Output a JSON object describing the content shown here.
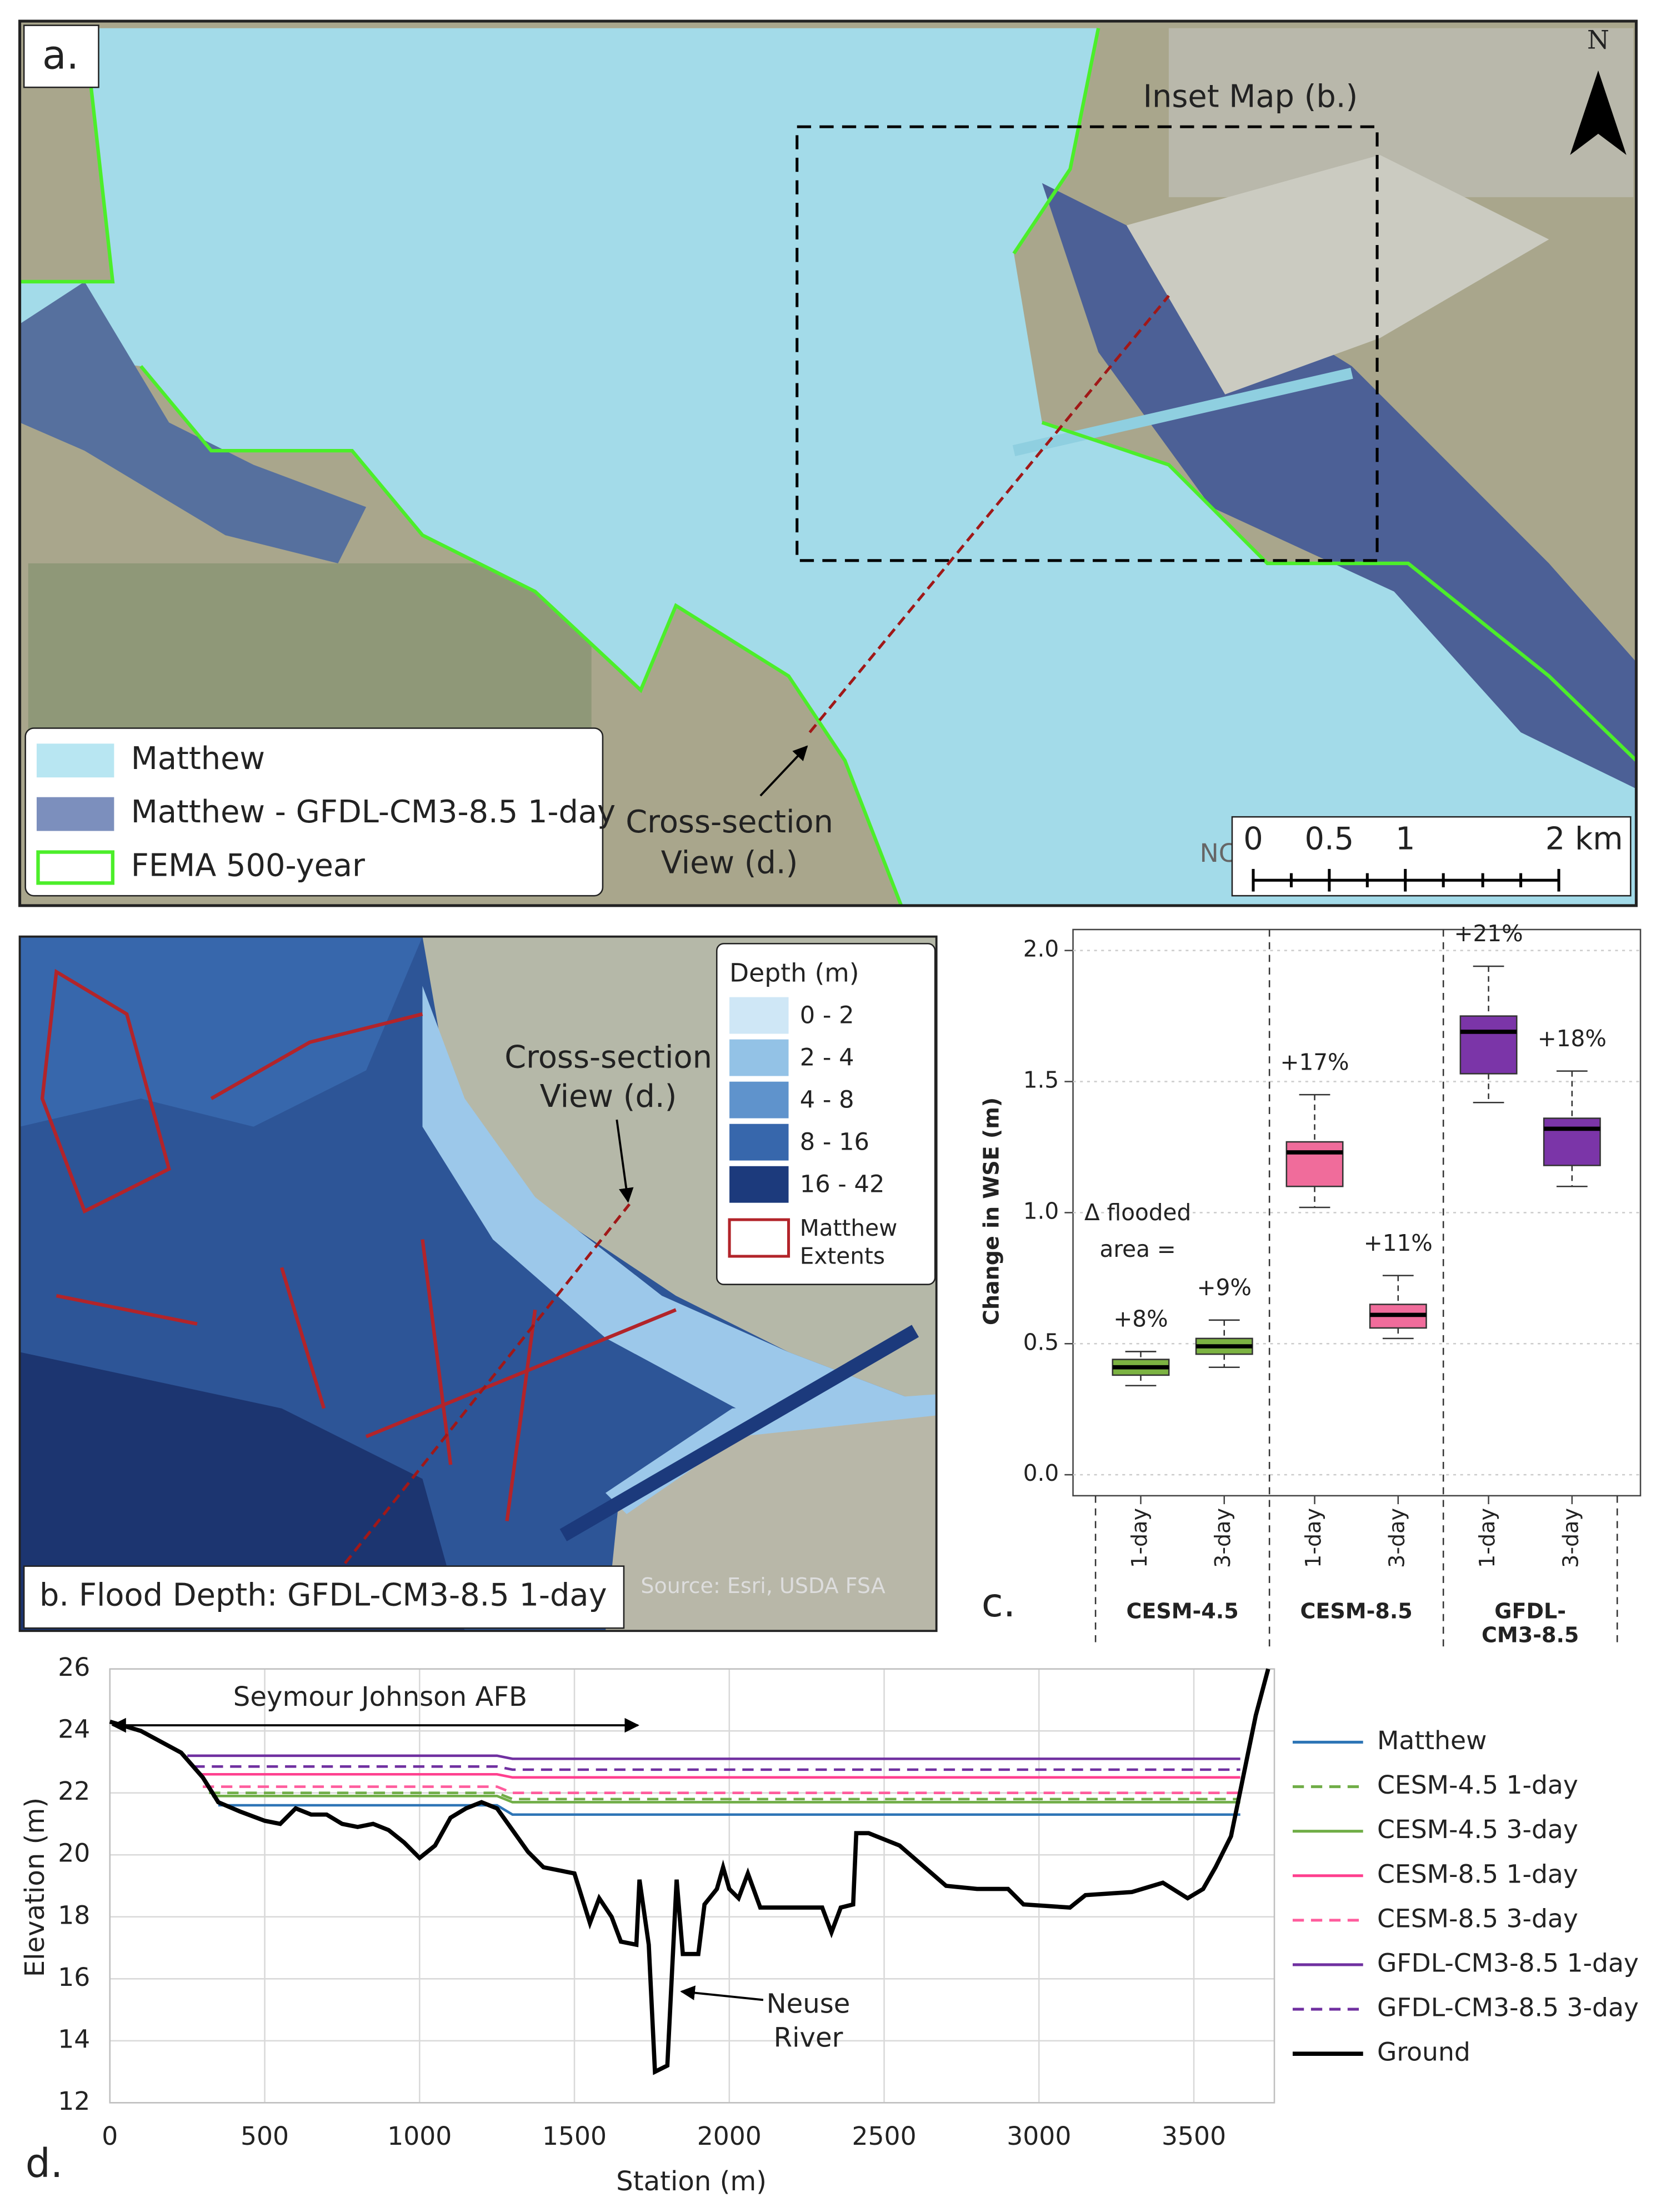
{
  "map_a": {
    "panel_label": "a.",
    "inset_label": "Inset Map (b.)",
    "north": "N",
    "cross_section": [
      "Cross-section",
      "View (d.)"
    ],
    "state": "NC",
    "legend": [
      "Matthew",
      "Matthew - GFDL-CM3-8.5 1-day",
      "FEMA 500-year"
    ],
    "scale": [
      "0",
      "0.5",
      "1",
      "2 km"
    ]
  },
  "map_b": {
    "title": "b. Flood Depth: GFDL-CM3-8.5 1-day",
    "legend_title": "Depth (m)",
    "depth_classes": [
      "0 - 2",
      "2 - 4",
      "4 - 8",
      "8 - 16",
      "16 - 42"
    ],
    "extent_label": [
      "Matthew",
      "Extents"
    ],
    "cross_section": [
      "Cross-section",
      "View (d.)"
    ],
    "source": "Source: Esri, USDA FSA"
  },
  "chart_data": [
    {
      "type": "box",
      "panel_label": "c.",
      "y_label": "Change in WSE (m)",
      "ylim": [
        -0.08,
        2.08
      ],
      "yticks": [
        {
          "value": 0,
          "label": "0.0"
        },
        {
          "value": 0.5,
          "label": "0.5"
        },
        {
          "value": 1,
          "label": "1.0"
        },
        {
          "value": 1.5,
          "label": "1.5"
        },
        {
          "value": 2,
          "label": "2.0"
        }
      ],
      "grid": true,
      "annotations": [
        "Δ flooded",
        "area ="
      ],
      "groups": [
        {
          "name": "CESM-4.5",
          "color": "#7cb342",
          "boxes": [
            {
              "category": "1-day",
              "min": 0.34,
              "q1": 0.38,
              "median": 0.41,
              "q3": 0.44,
              "max": 0.47,
              "label": "+8%"
            },
            {
              "category": "3-day",
              "min": 0.41,
              "q1": 0.46,
              "median": 0.49,
              "q3": 0.52,
              "max": 0.59,
              "label": "+9%"
            }
          ]
        },
        {
          "name": "CESM-8.5",
          "color": "#f06c9b",
          "boxes": [
            {
              "category": "1-day",
              "min": 1.02,
              "q1": 1.1,
              "median": 1.23,
              "q3": 1.27,
              "max": 1.45,
              "label": "+17%"
            },
            {
              "category": "3-day",
              "min": 0.52,
              "q1": 0.56,
              "median": 0.61,
              "q3": 0.65,
              "max": 0.76,
              "label": "+11%"
            }
          ]
        },
        {
          "name": "GFDL-CM3-8.5",
          "color": "#7b35a8",
          "boxes": [
            {
              "category": "1-day",
              "min": 1.42,
              "q1": 1.53,
              "median": 1.69,
              "q3": 1.75,
              "max": 1.94,
              "label": "+21%"
            },
            {
              "category": "3-day",
              "min": 1.1,
              "q1": 1.18,
              "median": 1.32,
              "q3": 1.36,
              "max": 1.54,
              "label": "+18%"
            }
          ]
        }
      ]
    },
    {
      "type": "line",
      "panel_label": "d.",
      "x_label": "Station (m)",
      "y_label": "Elevation (m)",
      "xlim": [
        0,
        3760
      ],
      "ylim": [
        12,
        26
      ],
      "xticks": [
        0,
        500,
        1000,
        1500,
        2000,
        2500,
        3000,
        3500
      ],
      "yticks": [
        12,
        14,
        16,
        18,
        20,
        22,
        24,
        26
      ],
      "grid": true,
      "annotations": [
        "Seymour Johnson AFB",
        "Neuse",
        "River"
      ],
      "series": [
        {
          "name": "Matthew",
          "color": "#2e75b6",
          "dashed": false,
          "x": [
            350,
            1250,
            1300,
            3650
          ],
          "values": [
            21.6,
            21.6,
            21.3,
            21.3
          ]
        },
        {
          "name": "CESM-4.5 1-day",
          "color": "#70ad47",
          "dashed": true,
          "x": [
            320,
            1250,
            1300,
            3650
          ],
          "values": [
            22,
            22,
            21.8,
            21.8
          ]
        },
        {
          "name": "CESM-4.5 3-day",
          "color": "#70ad47",
          "dashed": false,
          "x": [
            330,
            1250,
            1300,
            3650
          ],
          "values": [
            21.9,
            21.9,
            21.7,
            21.7
          ]
        },
        {
          "name": "CESM-8.5 1-day",
          "color": "#ff3f8e",
          "dashed": false,
          "x": [
            290,
            1250,
            1300,
            3650
          ],
          "values": [
            22.6,
            22.6,
            22.5,
            22.5
          ]
        },
        {
          "name": "CESM-8.5 3-day",
          "color": "#ff5c9d",
          "dashed": true,
          "x": [
            300,
            1250,
            1300,
            3650
          ],
          "values": [
            22.2,
            22.2,
            22,
            22
          ]
        },
        {
          "name": "GFDL-CM3-8.5 1-day",
          "color": "#7030a0",
          "dashed": false,
          "x": [
            250,
            1250,
            1300,
            3650
          ],
          "values": [
            23.2,
            23.2,
            23.1,
            23.1
          ]
        },
        {
          "name": "GFDL-CM3-8.5 3-day",
          "color": "#7030a0",
          "dashed": true,
          "x": [
            270,
            1250,
            1300,
            3650
          ],
          "values": [
            22.85,
            22.85,
            22.75,
            22.75
          ]
        },
        {
          "name": "Ground",
          "color": "#000000",
          "dashed": false,
          "x": [
            0,
            100,
            230,
            300,
            350,
            420,
            500,
            550,
            600,
            650,
            700,
            750,
            800,
            850,
            900,
            950,
            1000,
            1050,
            1100,
            1150,
            1200,
            1250,
            1300,
            1350,
            1400,
            1500,
            1550,
            1580,
            1620,
            1650,
            1700,
            1710,
            1740,
            1760,
            1800,
            1830,
            1850,
            1900,
            1920,
            1960,
            1980,
            2000,
            2030,
            2060,
            2100,
            2300,
            2330,
            2360,
            2400,
            2410,
            2450,
            2550,
            2700,
            2800,
            2900,
            2950,
            3100,
            3150,
            3300,
            3400,
            3480,
            3530,
            3570,
            3620,
            3700,
            3740
          ],
          "values": [
            24.3,
            24,
            23.3,
            22.5,
            21.7,
            21.4,
            21.1,
            21,
            21.5,
            21.3,
            21.3,
            21,
            20.9,
            21,
            20.8,
            20.4,
            19.9,
            20.3,
            21.2,
            21.5,
            21.7,
            21.5,
            20.8,
            20.1,
            19.6,
            19.4,
            17.8,
            18.6,
            18,
            17.2,
            17.1,
            19.2,
            17.1,
            13,
            13.2,
            19.2,
            16.8,
            16.8,
            18.4,
            18.9,
            19.6,
            18.9,
            18.6,
            19.4,
            18.3,
            18.3,
            17.5,
            18.3,
            18.4,
            20.7,
            20.7,
            20.3,
            19,
            18.9,
            18.9,
            18.4,
            18.3,
            18.7,
            18.8,
            19.1,
            18.6,
            18.9,
            19.6,
            20.6,
            24.5,
            26
          ]
        }
      ]
    }
  ]
}
